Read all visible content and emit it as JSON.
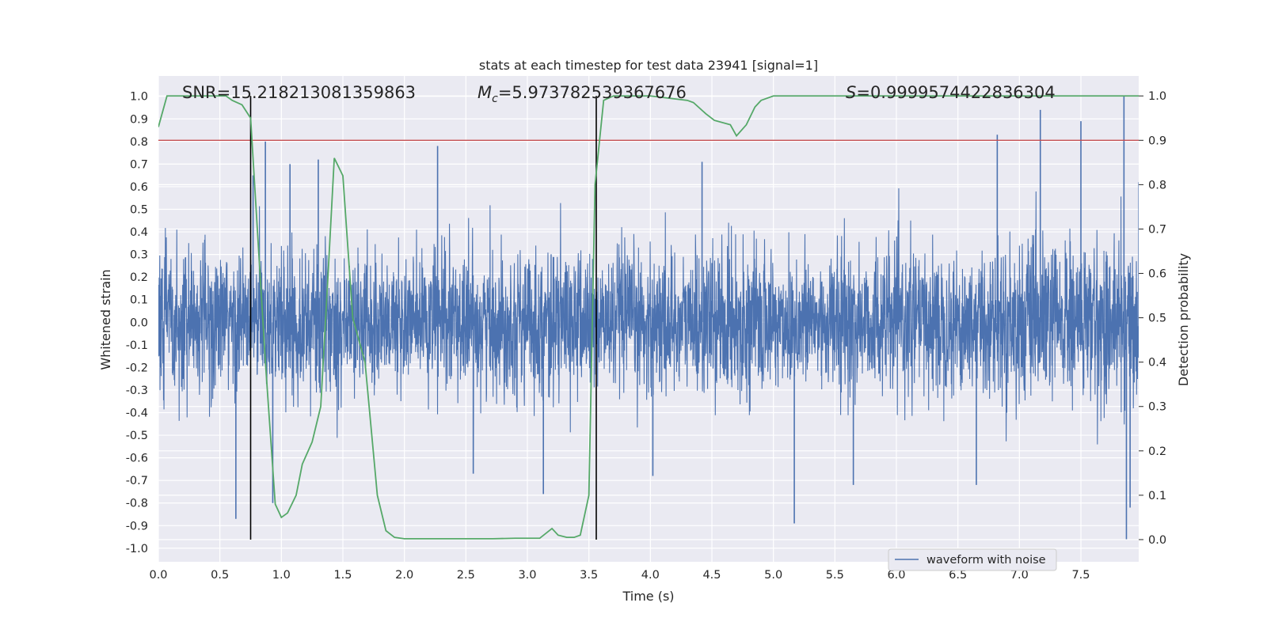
{
  "chart_data": {
    "type": "line",
    "title": "stats at each timestep for test data 23941 [signal=1]",
    "xlabel": "Time (s)",
    "ylabel": "Whitened strain",
    "ylabel_right": "Detection probability",
    "xlim": [
      0,
      7.97
    ],
    "ylim": [
      -1.06,
      1.09
    ],
    "ylim_right": [
      -0.05,
      1.045
    ],
    "x_ticks": [
      0.0,
      0.5,
      1.0,
      1.5,
      2.0,
      2.5,
      3.0,
      3.5,
      4.0,
      4.5,
      5.0,
      5.5,
      6.0,
      6.5,
      7.0,
      7.5
    ],
    "x_tick_labels": [
      "0.0",
      "0.5",
      "1.0",
      "1.5",
      "2.0",
      "2.5",
      "3.0",
      "3.5",
      "4.0",
      "4.5",
      "5.0",
      "5.5",
      "6.0",
      "6.5",
      "7.0",
      "7.5"
    ],
    "y_ticks": [
      1.0,
      0.9,
      0.8,
      0.7,
      0.6,
      0.5,
      0.4,
      0.3,
      0.2,
      0.1,
      0.0,
      -0.1,
      -0.2,
      -0.3,
      -0.4,
      -0.5,
      -0.6,
      -0.7,
      -0.8,
      -0.9,
      -1.0
    ],
    "y_tick_labels": [
      "1.0",
      "0.9",
      "0.8",
      "0.7",
      "0.6",
      "0.5",
      "0.4",
      "0.3",
      "0.2",
      "0.1",
      "0.0",
      "-0.1",
      "-0.2",
      "-0.3",
      "-0.4",
      "-0.5",
      "-0.6",
      "-0.7",
      "-0.8",
      "-0.9",
      "-1.0"
    ],
    "y_right_ticks": [
      1.0,
      0.9,
      0.8,
      0.7,
      0.6,
      0.5,
      0.4,
      0.3,
      0.2,
      0.1,
      0.0
    ],
    "y_right_tick_labels": [
      "1.0",
      "0.9",
      "0.8",
      "0.7",
      "0.6",
      "0.5",
      "0.4",
      "0.3",
      "0.2",
      "0.1",
      "0.0"
    ],
    "grid": true,
    "legend_position": "bottom-right",
    "annotations": {
      "snr": "SNR=15.218213081359863",
      "mc_symbol": "M",
      "mc_subscript": "c",
      "mc_value": "=5.973782539367676",
      "s_symbol": "S",
      "s_value": "=0.9999574422836304"
    },
    "series": [
      {
        "name": "waveform with noise",
        "axis": "left",
        "color": "#4c72b0",
        "kind": "noisy_waveform",
        "x_range": [
          0.0,
          7.97
        ],
        "core_band": [
          -0.2,
          0.2
        ],
        "typical_envelope": [
          -0.55,
          0.6
        ],
        "peaks": [
          {
            "x": 0.63,
            "y": -0.87
          },
          {
            "x": 0.77,
            "y": 0.65
          },
          {
            "x": 0.87,
            "y": 0.8
          },
          {
            "x": 0.93,
            "y": -0.8
          },
          {
            "x": 1.07,
            "y": 0.7
          },
          {
            "x": 1.3,
            "y": 0.72
          },
          {
            "x": 2.27,
            "y": 0.78
          },
          {
            "x": 2.56,
            "y": -0.67
          },
          {
            "x": 3.13,
            "y": -0.76
          },
          {
            "x": 4.02,
            "y": -0.68
          },
          {
            "x": 4.42,
            "y": 0.71
          },
          {
            "x": 5.17,
            "y": -0.89
          },
          {
            "x": 6.82,
            "y": 0.83
          },
          {
            "x": 7.17,
            "y": 0.94
          },
          {
            "x": 7.5,
            "y": 0.89
          },
          {
            "x": 7.85,
            "y": 1.0
          },
          {
            "x": 7.87,
            "y": -0.96
          },
          {
            "x": 7.9,
            "y": -0.82
          },
          {
            "x": 6.65,
            "y": -0.72
          },
          {
            "x": 5.65,
            "y": -0.72
          }
        ]
      },
      {
        "name": "",
        "axis": "right",
        "color": "#55a868",
        "x": [
          0.0,
          0.07,
          0.55,
          0.6,
          0.68,
          0.75,
          0.8,
          0.87,
          0.95,
          1.0,
          1.05,
          1.12,
          1.17,
          1.25,
          1.32,
          1.38,
          1.43,
          1.5,
          1.58,
          1.68,
          1.78,
          1.85,
          1.92,
          2.0,
          2.2,
          2.5,
          2.72,
          2.9,
          3.1,
          3.2,
          3.25,
          3.32,
          3.38,
          3.43,
          3.5,
          3.55,
          3.62,
          3.7,
          4.0,
          4.3,
          4.35,
          4.45,
          4.52,
          4.65,
          4.7,
          4.78,
          4.85,
          4.9,
          5.0,
          5.5,
          7.97
        ],
        "values": [
          0.93,
          1.0,
          1.0,
          0.99,
          0.98,
          0.95,
          0.72,
          0.4,
          0.08,
          0.05,
          0.06,
          0.1,
          0.17,
          0.22,
          0.3,
          0.6,
          0.86,
          0.82,
          0.5,
          0.4,
          0.1,
          0.02,
          0.005,
          0.002,
          0.002,
          0.002,
          0.002,
          0.003,
          0.003,
          0.025,
          0.01,
          0.005,
          0.005,
          0.01,
          0.1,
          0.8,
          0.99,
          1.0,
          1.0,
          0.99,
          0.985,
          0.96,
          0.945,
          0.935,
          0.91,
          0.935,
          0.975,
          0.99,
          1.0,
          1.0,
          1.0
        ]
      }
    ],
    "threshold_line": {
      "axis": "right",
      "value": 0.9,
      "color": "#c44e52"
    },
    "vertical_markers": [
      {
        "x": 0.75,
        "y_from": 0.0,
        "y_to": 1.0,
        "color": "#000000"
      },
      {
        "x": 3.56,
        "y_from": 0.0,
        "y_to": 1.0,
        "color": "#000000"
      }
    ]
  }
}
